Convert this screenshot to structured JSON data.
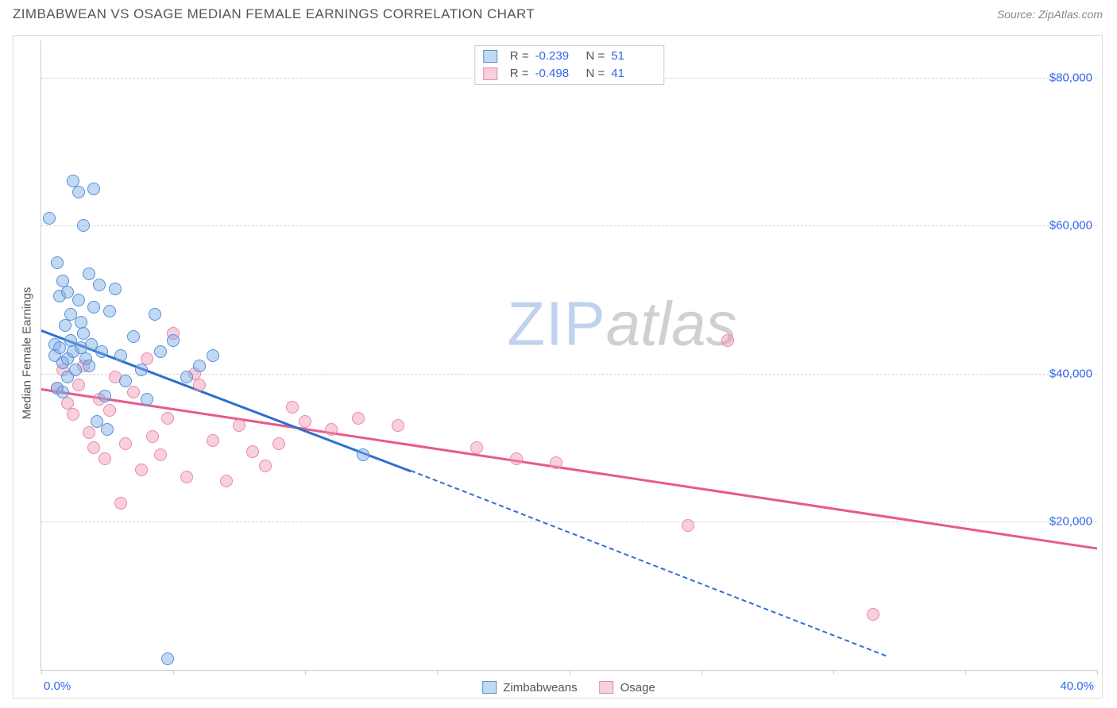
{
  "header": {
    "title": "ZIMBABWEAN VS OSAGE MEDIAN FEMALE EARNINGS CORRELATION CHART",
    "source_prefix": "Source: ",
    "source_name": "ZipAtlas.com"
  },
  "chart": {
    "type": "scatter",
    "ylabel": "Median Female Earnings",
    "xlim": [
      0,
      40
    ],
    "ylim": [
      0,
      85000
    ],
    "xtick_step": 5,
    "xmin_label": "0.0%",
    "xmax_label": "40.0%",
    "yticks": [
      {
        "value": 20000,
        "label": "$20,000"
      },
      {
        "value": 40000,
        "label": "$40,000"
      },
      {
        "value": 60000,
        "label": "$60,000"
      },
      {
        "value": 80000,
        "label": "$80,000"
      }
    ],
    "marker_radius": 8,
    "marker_border_width": 1.5,
    "trend_line_width": 2.5,
    "background_color": "#ffffff",
    "grid_color": "#d5d5d5",
    "axis_color": "#cccccc",
    "tick_label_color": "#3366ee",
    "text_color": "#555555",
    "watermark": {
      "part1": "ZIP",
      "part2": "atlas"
    }
  },
  "series": {
    "a": {
      "name": "Zimbabweans",
      "fill_color": "rgba(120,170,230,0.45)",
      "stroke_color": "#5a8fd6",
      "line_color": "#2f6fd0",
      "R": "-0.239",
      "N": "51",
      "trend": {
        "x1": 0,
        "y1": 46000,
        "x2_solid": 14,
        "y2_solid": 27000,
        "x2": 32,
        "y2": 2000
      },
      "points": [
        [
          0.3,
          61000
        ],
        [
          0.5,
          44000
        ],
        [
          0.5,
          42500
        ],
        [
          0.6,
          55000
        ],
        [
          0.6,
          38000
        ],
        [
          0.7,
          50500
        ],
        [
          0.7,
          43500
        ],
        [
          0.8,
          52500
        ],
        [
          0.8,
          41500
        ],
        [
          0.8,
          37500
        ],
        [
          0.9,
          46500
        ],
        [
          1.0,
          51000
        ],
        [
          1.0,
          42000
        ],
        [
          1.0,
          39500
        ],
        [
          1.1,
          48000
        ],
        [
          1.1,
          44500
        ],
        [
          1.2,
          66000
        ],
        [
          1.2,
          43000
        ],
        [
          1.3,
          40500
        ],
        [
          1.4,
          64500
        ],
        [
          1.4,
          50000
        ],
        [
          1.5,
          47000
        ],
        [
          1.5,
          43500
        ],
        [
          1.6,
          60000
        ],
        [
          1.6,
          45500
        ],
        [
          1.7,
          42000
        ],
        [
          1.8,
          53500
        ],
        [
          1.8,
          41000
        ],
        [
          1.9,
          44000
        ],
        [
          2.0,
          65000
        ],
        [
          2.0,
          49000
        ],
        [
          2.1,
          33500
        ],
        [
          2.2,
          52000
        ],
        [
          2.3,
          43000
        ],
        [
          2.4,
          37000
        ],
        [
          2.5,
          32500
        ],
        [
          2.6,
          48500
        ],
        [
          2.8,
          51500
        ],
        [
          3.0,
          42500
        ],
        [
          3.2,
          39000
        ],
        [
          3.5,
          45000
        ],
        [
          3.8,
          40500
        ],
        [
          4.0,
          36500
        ],
        [
          4.3,
          48000
        ],
        [
          4.5,
          43000
        ],
        [
          4.8,
          1500
        ],
        [
          5.0,
          44500
        ],
        [
          5.5,
          39500
        ],
        [
          6.0,
          41000
        ],
        [
          6.5,
          42500
        ],
        [
          12.2,
          29000
        ]
      ]
    },
    "b": {
      "name": "Osage",
      "fill_color": "rgba(240,150,180,0.45)",
      "stroke_color": "#e88aa8",
      "line_color": "#e75a8a",
      "R": "-0.498",
      "N": "41",
      "trend": {
        "x1": 0,
        "y1": 38000,
        "x2_solid": 40,
        "y2_solid": 16500,
        "x2": 40,
        "y2": 16500
      },
      "points": [
        [
          0.6,
          38000
        ],
        [
          0.8,
          40500
        ],
        [
          1.0,
          36000
        ],
        [
          1.2,
          34500
        ],
        [
          1.4,
          38500
        ],
        [
          1.6,
          41000
        ],
        [
          1.8,
          32000
        ],
        [
          2.0,
          30000
        ],
        [
          2.2,
          36500
        ],
        [
          2.4,
          28500
        ],
        [
          2.6,
          35000
        ],
        [
          2.8,
          39500
        ],
        [
          3.0,
          22500
        ],
        [
          3.2,
          30500
        ],
        [
          3.5,
          37500
        ],
        [
          3.8,
          27000
        ],
        [
          4.0,
          42000
        ],
        [
          4.2,
          31500
        ],
        [
          4.5,
          29000
        ],
        [
          4.8,
          34000
        ],
        [
          5.0,
          45500
        ],
        [
          5.5,
          26000
        ],
        [
          6.0,
          38500
        ],
        [
          6.5,
          31000
        ],
        [
          7.0,
          25500
        ],
        [
          7.5,
          33000
        ],
        [
          8.0,
          29500
        ],
        [
          8.5,
          27500
        ],
        [
          9.0,
          30500
        ],
        [
          10.0,
          33500
        ],
        [
          11.0,
          32500
        ],
        [
          12.0,
          34000
        ],
        [
          13.5,
          33000
        ],
        [
          16.5,
          30000
        ],
        [
          18.0,
          28500
        ],
        [
          19.5,
          28000
        ],
        [
          24.5,
          19500
        ],
        [
          26.0,
          44500
        ],
        [
          31.5,
          7500
        ],
        [
          9.5,
          35500
        ],
        [
          5.8,
          40000
        ]
      ]
    }
  },
  "legend_top": {
    "r_label": "R =",
    "n_label": "N ="
  }
}
